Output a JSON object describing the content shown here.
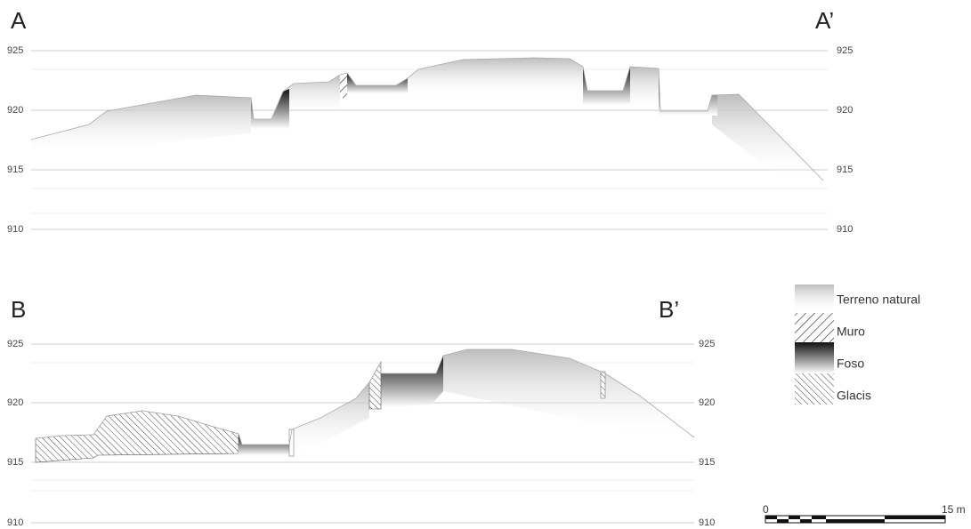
{
  "sections": [
    {
      "label_left": "A",
      "label_right": "A’",
      "elevations_left": [
        925,
        920,
        915,
        910
      ],
      "elevations_right": [
        925,
        920,
        915,
        910
      ]
    },
    {
      "label_left": "B",
      "label_right": "B’",
      "elevations_left": [
        925,
        920,
        915,
        910
      ],
      "elevations_right": [
        925,
        920,
        915,
        910
      ]
    }
  ],
  "legend": [
    "Terreno natural",
    "Muro",
    "Foso",
    "Glacis"
  ],
  "scale": {
    "start": "0",
    "end": "15 m"
  }
}
